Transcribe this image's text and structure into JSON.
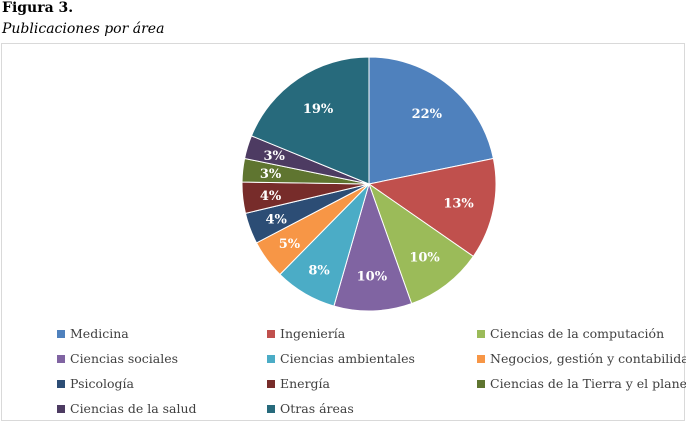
{
  "figure": {
    "label": "Figura 3.",
    "caption": "Publicaciones por área"
  },
  "chart_data": {
    "type": "pie",
    "title": "",
    "legend_position": "bottom",
    "slices": [
      {
        "label": "Medicina",
        "value": 22,
        "display": "22%",
        "color": "#4f81bd"
      },
      {
        "label": "Ingeniería",
        "value": 13,
        "display": "13%",
        "color": "#c0504d"
      },
      {
        "label": "Ciencias de la computación",
        "value": 10,
        "display": "10%",
        "color": "#9bbb59"
      },
      {
        "label": "Ciencias sociales",
        "value": 10,
        "display": "10%",
        "color": "#8064a2"
      },
      {
        "label": "Ciencias ambientales",
        "value": 8,
        "display": "8%",
        "color": "#4bacc6"
      },
      {
        "label": "Negocios, gestión y contabilidad",
        "value": 5,
        "display": "5%",
        "color": "#f79646"
      },
      {
        "label": "Psicología",
        "value": 4,
        "display": "4%",
        "color": "#2c4d75"
      },
      {
        "label": "Energía",
        "value": 4,
        "display": "4%",
        "color": "#772c2a"
      },
      {
        "label": "Ciencias de la Tierra y el planeta",
        "value": 3,
        "display": "3%",
        "color": "#5f7530"
      },
      {
        "label": "Ciencias de la salud",
        "value": 3,
        "display": "3%",
        "color": "#4d3b62"
      },
      {
        "label": "Otras áreas",
        "value": 19,
        "display": "19%",
        "color": "#276a7c"
      }
    ]
  }
}
